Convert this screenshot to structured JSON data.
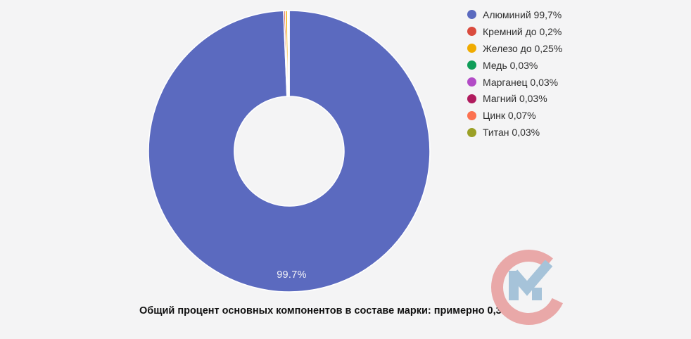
{
  "background": "#f4f4f5",
  "chart_data": {
    "type": "pie",
    "subtype": "donut",
    "direction": "clockwise",
    "start_angle_deg": 0,
    "inner_radius_ratio": 0.39,
    "legend_position": "right",
    "caption": "Общий процент основных компонентов в составе марки: примерно 0,3%",
    "slice_value_label": "99.7%",
    "segments": [
      {
        "name": "Алюминий",
        "legend_label": "Алюминий 99,7%",
        "value": 99.7,
        "color": "#5b6abf"
      },
      {
        "name": "Кремний",
        "legend_label": "Кремний до 0,2%",
        "value": 0.2,
        "color": "#da4b3e"
      },
      {
        "name": "Железо",
        "legend_label": "Железо до 0,25%",
        "value": 0.25,
        "color": "#f0ab00"
      },
      {
        "name": "Медь",
        "legend_label": "Медь 0,03%",
        "value": 0.03,
        "color": "#0f9d58"
      },
      {
        "name": "Марганец",
        "legend_label": "Марганец 0,03%",
        "value": 0.03,
        "color": "#b24bc6"
      },
      {
        "name": "Магний",
        "legend_label": "Магний 0,03%",
        "value": 0.03,
        "color": "#b01b5e"
      },
      {
        "name": "Цинк",
        "legend_label": "Цинк 0,07%",
        "value": 0.07,
        "color": "#fc7150"
      },
      {
        "name": "Титан",
        "legend_label": "Титан 0,03%",
        "value": 0.03,
        "color": "#9ba026"
      }
    ],
    "slice_border_color": "#ffffff"
  },
  "watermark": {
    "letters": "СМ",
    "c_color": "#e9a8a8",
    "m_color": "#a6c3d9"
  }
}
